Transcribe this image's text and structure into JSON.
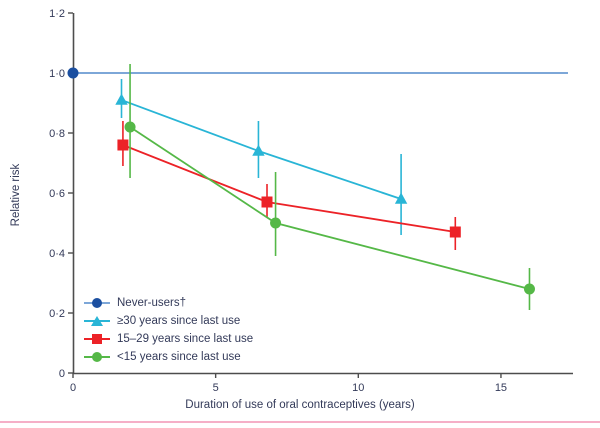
{
  "chart_data": {
    "type": "line",
    "title": "",
    "xlabel": "Duration of use of oral contraceptives (years)",
    "ylabel": "Relative risk",
    "xlim": [
      0,
      17.5
    ],
    "ylim": [
      0,
      1.2
    ],
    "x_ticks": [
      0,
      5,
      10,
      15
    ],
    "x_tick_labels": [
      "0",
      "5",
      "10",
      "15"
    ],
    "y_ticks": [
      0,
      0.2,
      0.4,
      0.6,
      0.8,
      1.0,
      1.2
    ],
    "y_tick_labels": [
      "0",
      "0·2",
      "0·4",
      "0·6",
      "0·8",
      "1·0",
      "1·2"
    ],
    "grid": false,
    "legend_position": "lower-left",
    "reference_line": {
      "y": 1.0,
      "x_start": 0,
      "x_end": 17.35
    },
    "series": [
      {
        "name": "Never-users†",
        "marker": "circle",
        "color": "#1b4fa0",
        "line_color": "#7da7d8",
        "points": [
          {
            "x": 0,
            "y": 1.0
          }
        ]
      },
      {
        "name": "≥30 years since last use",
        "marker": "triangle",
        "color": "#29b5d6",
        "points": [
          {
            "x": 1.7,
            "y": 0.91,
            "lo": 0.85,
            "hi": 0.98
          },
          {
            "x": 6.5,
            "y": 0.74,
            "lo": 0.65,
            "hi": 0.84
          },
          {
            "x": 11.5,
            "y": 0.58,
            "lo": 0.46,
            "hi": 0.73
          }
        ]
      },
      {
        "name": "15–29 years since last use",
        "marker": "square",
        "color": "#ec2227",
        "points": [
          {
            "x": 1.75,
            "y": 0.76,
            "lo": 0.69,
            "hi": 0.84
          },
          {
            "x": 6.8,
            "y": 0.57,
            "lo": 0.52,
            "hi": 0.63
          },
          {
            "x": 13.4,
            "y": 0.47,
            "lo": 0.41,
            "hi": 0.52
          }
        ]
      },
      {
        "name": "<15 years since last use",
        "marker": "circle",
        "color": "#55b847",
        "points": [
          {
            "x": 2.0,
            "y": 0.82,
            "lo": 0.65,
            "hi": 1.03
          },
          {
            "x": 7.1,
            "y": 0.5,
            "lo": 0.39,
            "hi": 0.67
          },
          {
            "x": 16.0,
            "y": 0.28,
            "lo": 0.21,
            "hi": 0.35
          }
        ]
      }
    ],
    "colors": {
      "axis": "#4d4d4d",
      "text": "#333a59",
      "reference_line": "#7da7d8",
      "bottom_rule": "#f5afc7"
    }
  }
}
